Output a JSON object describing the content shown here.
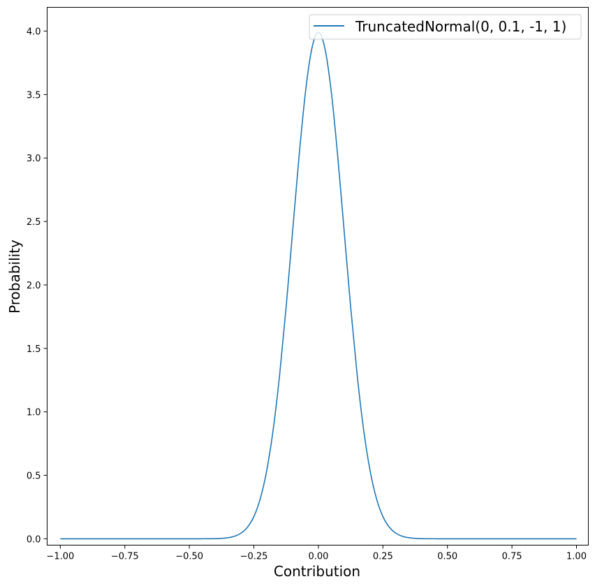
{
  "chart_data": {
    "type": "line",
    "title": "",
    "xlabel": "Contribution",
    "ylabel": "Probability",
    "xlim": [
      -1.051,
      1.046
    ],
    "ylim": [
      -0.05,
      4.187
    ],
    "xticks": [
      -1.0,
      -0.75,
      -0.5,
      -0.25,
      0.0,
      0.25,
      0.5,
      0.75,
      1.0
    ],
    "xtick_labels": [
      "−1.00",
      "−0.75",
      "−0.50",
      "−0.25",
      "0.00",
      "0.25",
      "0.50",
      "0.75",
      "1.00"
    ],
    "yticks": [
      0.0,
      0.5,
      1.0,
      1.5,
      2.0,
      2.5,
      3.0,
      3.5,
      4.0
    ],
    "ytick_labels": [
      "0.0",
      "0.5",
      "1.0",
      "1.5",
      "2.0",
      "2.5",
      "3.0",
      "3.5",
      "4.0"
    ],
    "grid": false,
    "legend_position": "top-right",
    "series": [
      {
        "name": "TruncatedNormal(0, 0.1, -1, 1)",
        "color": "#1f77b4",
        "x": [
          -1.0,
          -0.75,
          -0.5,
          -0.45,
          -0.425,
          -0.4,
          -0.375,
          -0.35,
          -0.325,
          -0.3,
          -0.275,
          -0.25,
          -0.225,
          -0.2,
          -0.175,
          -0.15,
          -0.125,
          -0.1,
          -0.075,
          -0.05,
          -0.025,
          0.0,
          0.025,
          0.05,
          0.075,
          0.1,
          0.125,
          0.15,
          0.175,
          0.2,
          0.225,
          0.25,
          0.275,
          0.3,
          0.325,
          0.35,
          0.375,
          0.4,
          0.425,
          0.45,
          0.5,
          0.75,
          1.0
        ],
        "y": [
          0.0,
          0.0,
          1e-05,
          0.00016,
          0.00048,
          0.00134,
          0.00353,
          0.00873,
          0.0203,
          0.0443,
          0.0909,
          0.175,
          0.317,
          0.54,
          0.863,
          1.295,
          1.826,
          2.42,
          3.011,
          3.521,
          3.866,
          3.989,
          3.866,
          3.521,
          3.011,
          2.42,
          1.826,
          1.295,
          0.863,
          0.54,
          0.317,
          0.175,
          0.0909,
          0.0443,
          0.0203,
          0.00873,
          0.00353,
          0.00134,
          0.00048,
          0.00016,
          1e-05,
          0.0,
          0.0
        ]
      }
    ]
  }
}
